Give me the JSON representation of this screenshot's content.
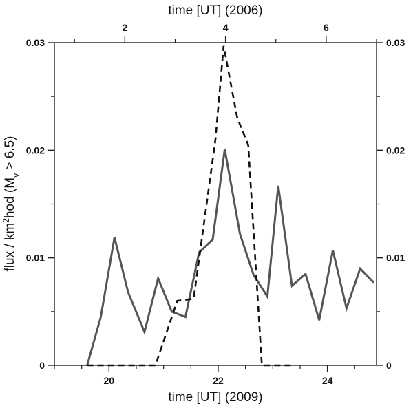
{
  "chart_data": {
    "type": "line",
    "xlabel_bottom": "time [UT] (2009)",
    "xlabel_top": "time [UT] (2006)",
    "ylabel_parts": {
      "pre": "flux / km",
      "sup": "2",
      "mid": "hod (M",
      "sub": "v",
      "post": " > 6.5)"
    },
    "x_bottom": {
      "range": [
        19.0,
        24.9
      ],
      "ticks": [
        20,
        22,
        24
      ],
      "tick_labels": [
        "20",
        "22",
        "24"
      ],
      "minor_step": 0.5
    },
    "x_top": {
      "range": [
        0.6,
        7.0
      ],
      "ticks": [
        2,
        4,
        6
      ],
      "tick_labels": [
        "2",
        "4",
        "6"
      ],
      "minor_step": 1
    },
    "y": {
      "range": [
        0,
        0.03
      ],
      "ticks": [
        0,
        0.01,
        0.02,
        0.03
      ],
      "tick_labels": [
        "0",
        "0.01",
        "0.02",
        "0.03"
      ],
      "minor_step": 0.005
    },
    "grid": false,
    "series": [
      {
        "style": "solid",
        "color": "#555555",
        "axis": "bottom",
        "x": [
          19.6,
          19.85,
          20.1,
          20.35,
          20.65,
          20.9,
          21.15,
          21.4,
          21.65,
          21.9,
          22.12,
          22.4,
          22.65,
          22.9,
          23.1,
          23.35,
          23.6,
          23.85,
          24.1,
          24.35,
          24.6,
          24.85
        ],
        "y": [
          0.0,
          0.0045,
          0.0119,
          0.0068,
          0.0031,
          0.0081,
          0.005,
          0.0045,
          0.0105,
          0.0117,
          0.0201,
          0.0122,
          0.0084,
          0.0064,
          0.0167,
          0.0074,
          0.0085,
          0.0042,
          0.0107,
          0.0053,
          0.009,
          0.0077
        ]
      },
      {
        "style": "dashed",
        "color": "#111111",
        "axis": "bottom",
        "x": [
          19.6,
          20.2,
          20.85,
          21.25,
          21.55,
          21.95,
          22.1,
          22.35,
          22.55,
          22.8,
          23.0,
          23.4
        ],
        "y": [
          0.0,
          0.0,
          0.0,
          0.006,
          0.0062,
          0.021,
          0.0297,
          0.023,
          0.0205,
          0.0,
          0.0,
          0.0
        ]
      }
    ]
  }
}
